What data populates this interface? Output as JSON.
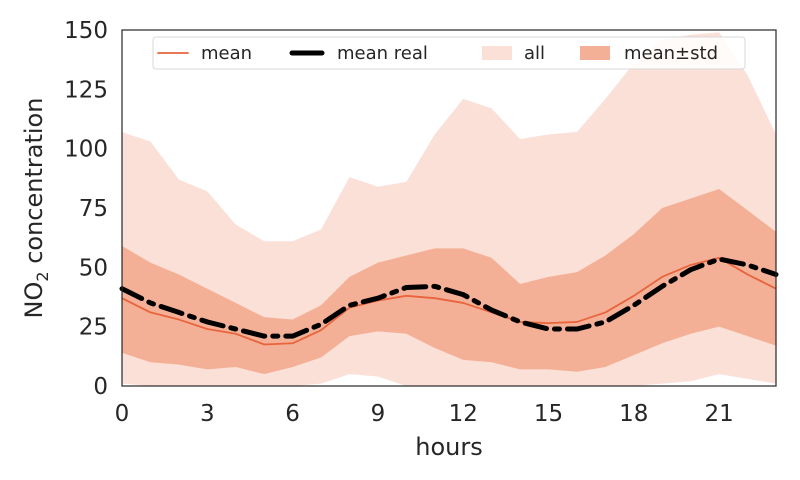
{
  "chart_data": {
    "type": "area",
    "xlabel": "hours",
    "ylabel_main": "NO",
    "ylabel_sub": "2",
    "ylabel_rest": " concentration",
    "xlim": [
      0,
      23
    ],
    "ylim": [
      0,
      150
    ],
    "xticks": [
      0,
      3,
      6,
      9,
      12,
      15,
      18,
      21
    ],
    "yticks": [
      0,
      25,
      50,
      75,
      100,
      125,
      150
    ],
    "grid": false,
    "legend_position": "top",
    "x": [
      0,
      1,
      2,
      3,
      4,
      5,
      6,
      7,
      8,
      9,
      10,
      11,
      12,
      13,
      14,
      15,
      16,
      17,
      18,
      19,
      20,
      21,
      22,
      23
    ],
    "series": [
      {
        "name": "all",
        "kind": "band",
        "color": "#fbe0d7",
        "lower": [
          1,
          0,
          0,
          0,
          0,
          0,
          0,
          1,
          5,
          4,
          0,
          0,
          0,
          0,
          0,
          0,
          0,
          0,
          0,
          1,
          2,
          5,
          3,
          1
        ],
        "upper": [
          107,
          103,
          87,
          82,
          68,
          61,
          61,
          66,
          88,
          84,
          86,
          106,
          121,
          117,
          104,
          106,
          107,
          121,
          136,
          146,
          148,
          149,
          131,
          106
        ]
      },
      {
        "name": "mean±std",
        "kind": "band",
        "color": "#f4b096",
        "lower": [
          14,
          10,
          9,
          7,
          8,
          5,
          8,
          12,
          21,
          23,
          22,
          16,
          11,
          10,
          7,
          7,
          6,
          8,
          13,
          18,
          22,
          25,
          21,
          17
        ],
        "upper": [
          59,
          52,
          47,
          41,
          35,
          29,
          28,
          34,
          46,
          52,
          55,
          58,
          58,
          54,
          43,
          46,
          48,
          55,
          64,
          75,
          79,
          83,
          74,
          65
        ]
      },
      {
        "name": "mean",
        "kind": "line",
        "color": "#e8643c",
        "values": [
          37,
          31,
          28,
          24,
          22,
          17.5,
          18,
          23.5,
          33,
          36,
          38,
          37,
          35,
          31,
          27,
          26.5,
          27,
          31,
          38,
          46,
          51,
          54,
          47,
          41
        ]
      },
      {
        "name": "mean real",
        "kind": "dashed-line",
        "color": "#000000",
        "values": [
          41,
          35,
          31,
          27,
          24,
          21,
          21,
          26,
          34,
          37,
          41.5,
          42,
          38.5,
          32,
          27,
          24,
          24,
          27,
          34,
          42,
          49,
          53.5,
          51,
          47
        ]
      }
    ]
  }
}
